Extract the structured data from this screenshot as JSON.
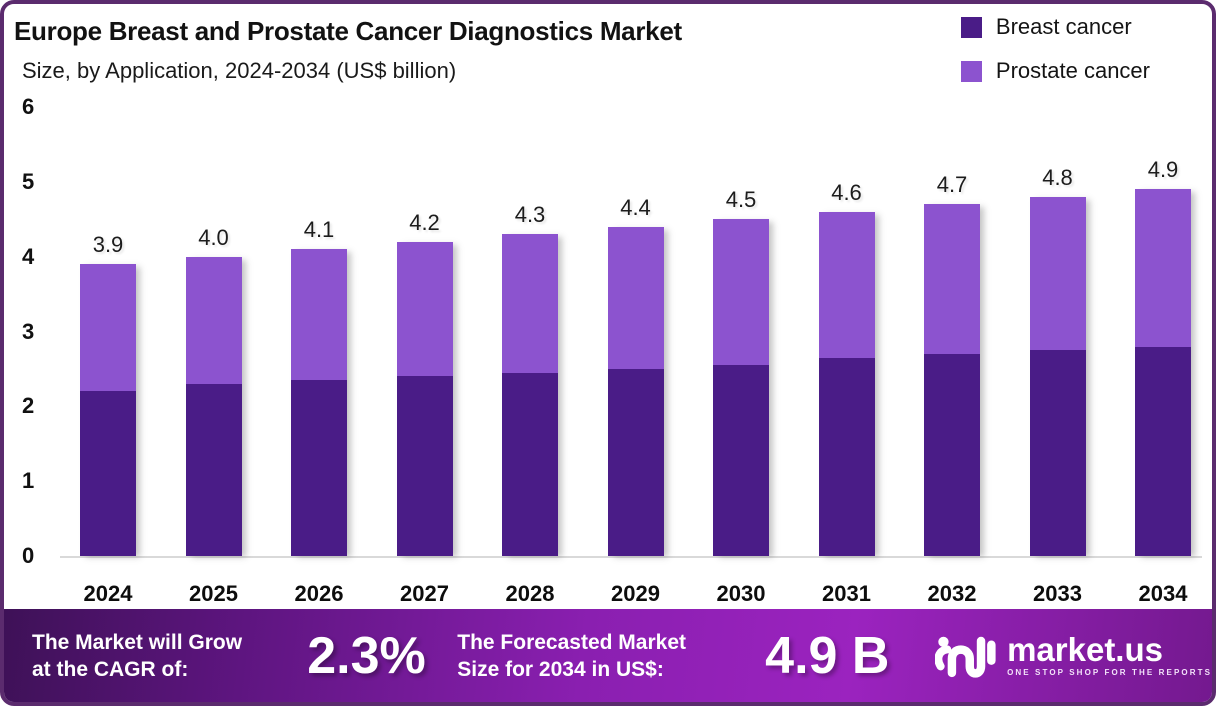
{
  "header": {
    "title": "Europe Breast and Prostate Cancer Diagnostics Market",
    "subtitle": "Size, by Application, 2024-2034 (US$ billion)"
  },
  "legend": {
    "items": [
      {
        "label": "Breast cancer",
        "color": "#4A1C87"
      },
      {
        "label": "Prostate cancer",
        "color": "#8C53CF"
      }
    ]
  },
  "chart_data": {
    "type": "bar",
    "stacked": true,
    "title": "Europe Breast and Prostate Cancer Diagnostics Market",
    "subtitle": "Size, by Application, 2024-2034 (US$ billion)",
    "unit": "US$ billion",
    "categories": [
      "2024",
      "2025",
      "2026",
      "2027",
      "2028",
      "2029",
      "2030",
      "2031",
      "2032",
      "2033",
      "2034"
    ],
    "series": [
      {
        "name": "Breast cancer",
        "color": "#4A1C87",
        "values": [
          2.2,
          2.3,
          2.35,
          2.4,
          2.45,
          2.5,
          2.55,
          2.65,
          2.7,
          2.75,
          2.8
        ]
      },
      {
        "name": "Prostate cancer",
        "color": "#8C53CF",
        "values": [
          1.7,
          1.7,
          1.75,
          1.8,
          1.85,
          1.9,
          1.95,
          1.95,
          2.0,
          2.05,
          2.1
        ]
      }
    ],
    "totals": [
      3.9,
      4.0,
      4.1,
      4.2,
      4.3,
      4.4,
      4.5,
      4.6,
      4.7,
      4.8,
      4.9
    ],
    "total_labels": [
      "3.9",
      "4.0",
      "4.1",
      "4.2",
      "4.3",
      "4.4",
      "4.5",
      "4.6",
      "4.7",
      "4.8",
      "4.9"
    ],
    "xlabel": "",
    "ylabel": "",
    "ylim": [
      0,
      6
    ],
    "yticks": [
      0,
      1,
      2,
      3,
      4,
      5,
      6
    ],
    "grid": false,
    "legend_position": "top-right"
  },
  "banner": {
    "cagr_label_line1": "The Market will Grow",
    "cagr_label_line2": "at the CAGR of:",
    "cagr_value": "2.3%",
    "forecast_label_line1": "The Forecasted Market",
    "forecast_label_line2": "Size for 2034 in US$:",
    "forecast_value": "4.9 B",
    "logo_text": "market.us",
    "logo_tagline": "ONE STOP SHOP FOR THE REPORTS"
  },
  "colors": {
    "frame_border": "#5B2B6E",
    "breast_cancer": "#4A1C87",
    "prostate_cancer": "#8C53CF",
    "axis_line": "#D9D9D9",
    "text": "#141414",
    "banner_gradient_start": "#3E1157",
    "banner_gradient_mid": "#9B23BF",
    "banner_gradient_end": "#74198F"
  }
}
